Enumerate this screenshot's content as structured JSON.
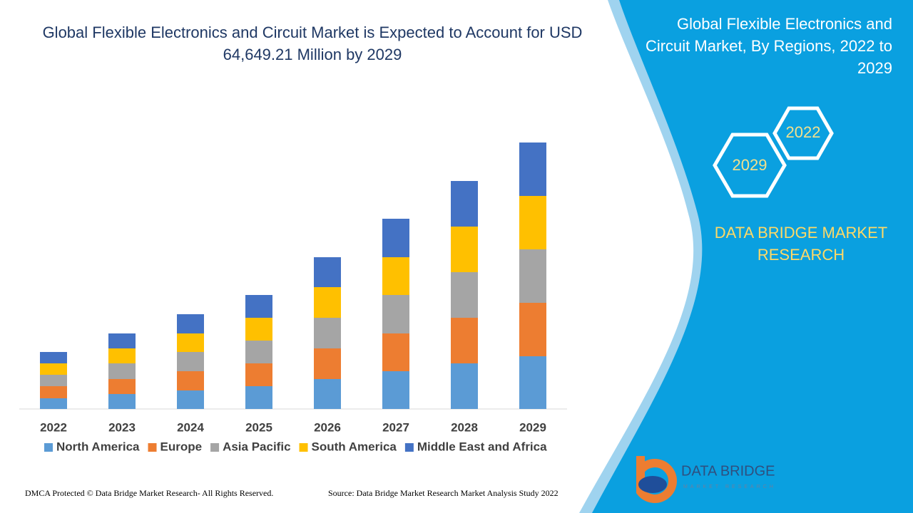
{
  "chart_data": {
    "type": "bar",
    "stacked": true,
    "title": "Global Flexible Electronics and Circuit Market is Expected to Account for USD 64,649.21 Million by 2029",
    "categories": [
      "2022",
      "2023",
      "2024",
      "2025",
      "2026",
      "2027",
      "2028",
      "2029"
    ],
    "series": [
      {
        "name": "North America",
        "color": "#5b9bd5",
        "values": [
          15,
          21,
          26,
          32,
          42,
          53,
          64,
          74
        ]
      },
      {
        "name": "Europe",
        "color": "#ed7d31",
        "values": [
          17,
          21,
          27,
          32,
          43,
          53,
          64,
          75
        ]
      },
      {
        "name": "Asia Pacific",
        "color": "#a5a5a5",
        "values": [
          16,
          22,
          27,
          32,
          43,
          54,
          64,
          75
        ]
      },
      {
        "name": "South America",
        "color": "#ffc000",
        "values": [
          16,
          21,
          26,
          32,
          43,
          53,
          64,
          75
        ]
      },
      {
        "name": "Middle East and Africa",
        "color": "#4472c4",
        "values": [
          16,
          21,
          27,
          32,
          42,
          54,
          64,
          75
        ]
      }
    ],
    "ylim": [
      0,
      400
    ],
    "legend": "bottom"
  },
  "panel": {
    "title": "Global Flexible Electronics and Circuit Market, By Regions, 2022 to 2029",
    "hex_years": [
      "2022",
      "2029"
    ],
    "brand": "DATA BRIDGE MARKET RESEARCH"
  },
  "logo": {
    "name": "DATA BRIDGE",
    "tagline": "MARKET RESEARCH"
  },
  "footer": {
    "dmca": "DMCA Protected © Data Bridge Market Research- All Rights Reserved.",
    "source": "Source: Data Bridge Market Research Market Analysis Study 2022"
  }
}
